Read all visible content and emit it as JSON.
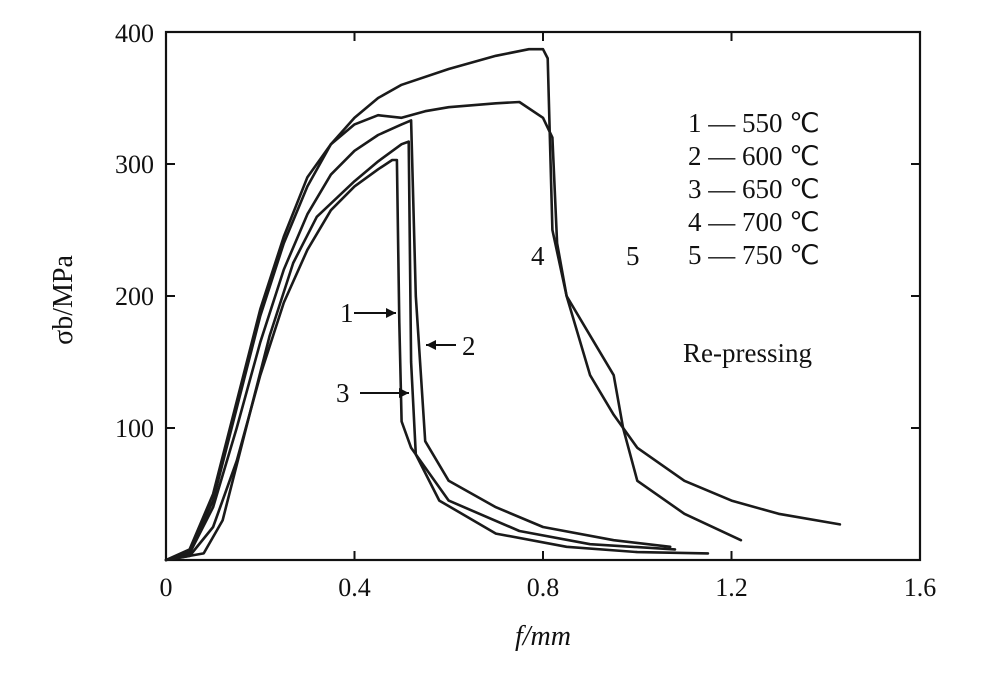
{
  "chart_data": {
    "type": "line",
    "xlabel": "f/mm",
    "ylabel": "σb/MPa",
    "xlim": [
      0,
      1.6
    ],
    "ylim": [
      0,
      400
    ],
    "xticks": [
      "0",
      "0.4",
      "0.8",
      "1.2",
      "1.6"
    ],
    "yticks": [
      "100",
      "200",
      "300",
      "400"
    ],
    "grid": false,
    "legend_position": "top-right",
    "legend": [
      "1 — 550 ℃",
      "2 — 600 ℃",
      "3 — 650 ℃",
      "4 — 700 ℃",
      "5 — 750 ℃"
    ],
    "annotation": "Re-pressing",
    "series": [
      {
        "name": "1",
        "label": "1",
        "points": [
          [
            0.0,
            0
          ],
          [
            0.05,
            3
          ],
          [
            0.1,
            25
          ],
          [
            0.15,
            75
          ],
          [
            0.2,
            140
          ],
          [
            0.25,
            195
          ],
          [
            0.3,
            235
          ],
          [
            0.35,
            265
          ],
          [
            0.4,
            283
          ],
          [
            0.45,
            296
          ],
          [
            0.48,
            303
          ],
          [
            0.49,
            303
          ],
          [
            0.495,
            180
          ],
          [
            0.5,
            105
          ],
          [
            0.52,
            85
          ],
          [
            0.6,
            45
          ],
          [
            0.75,
            22
          ],
          [
            0.9,
            12
          ],
          [
            1.08,
            8
          ]
        ]
      },
      {
        "name": "2",
        "label": "2",
        "points": [
          [
            0.0,
            0
          ],
          [
            0.05,
            5
          ],
          [
            0.1,
            40
          ],
          [
            0.15,
            100
          ],
          [
            0.2,
            165
          ],
          [
            0.25,
            220
          ],
          [
            0.3,
            262
          ],
          [
            0.35,
            292
          ],
          [
            0.4,
            310
          ],
          [
            0.45,
            322
          ],
          [
            0.5,
            330
          ],
          [
            0.52,
            333
          ],
          [
            0.53,
            200
          ],
          [
            0.55,
            90
          ],
          [
            0.6,
            60
          ],
          [
            0.7,
            40
          ],
          [
            0.8,
            25
          ],
          [
            0.95,
            15
          ],
          [
            1.07,
            10
          ]
        ]
      },
      {
        "name": "3",
        "label": "3",
        "points": [
          [
            0.0,
            0
          ],
          [
            0.08,
            5
          ],
          [
            0.12,
            30
          ],
          [
            0.17,
            100
          ],
          [
            0.22,
            170
          ],
          [
            0.27,
            225
          ],
          [
            0.32,
            260
          ],
          [
            0.4,
            287
          ],
          [
            0.45,
            302
          ],
          [
            0.5,
            315
          ],
          [
            0.515,
            317
          ],
          [
            0.52,
            150
          ],
          [
            0.53,
            80
          ],
          [
            0.58,
            45
          ],
          [
            0.7,
            20
          ],
          [
            0.85,
            10
          ],
          [
            1.0,
            6
          ],
          [
            1.15,
            5
          ]
        ]
      },
      {
        "name": "4",
        "label": "4",
        "points": [
          [
            0.0,
            0
          ],
          [
            0.05,
            8
          ],
          [
            0.1,
            50
          ],
          [
            0.15,
            120
          ],
          [
            0.2,
            190
          ],
          [
            0.25,
            245
          ],
          [
            0.3,
            290
          ],
          [
            0.35,
            315
          ],
          [
            0.4,
            330
          ],
          [
            0.45,
            337
          ],
          [
            0.5,
            335
          ],
          [
            0.55,
            340
          ],
          [
            0.6,
            343
          ],
          [
            0.7,
            346
          ],
          [
            0.75,
            347
          ],
          [
            0.8,
            335
          ],
          [
            0.82,
            320
          ],
          [
            0.83,
            240
          ],
          [
            0.85,
            200
          ],
          [
            0.9,
            140
          ],
          [
            0.95,
            110
          ],
          [
            1.0,
            85
          ],
          [
            1.1,
            60
          ],
          [
            1.2,
            45
          ],
          [
            1.3,
            35
          ],
          [
            1.43,
            27
          ]
        ]
      },
      {
        "name": "5",
        "label": "5",
        "points": [
          [
            0.0,
            0
          ],
          [
            0.05,
            6
          ],
          [
            0.1,
            45
          ],
          [
            0.15,
            115
          ],
          [
            0.2,
            185
          ],
          [
            0.25,
            240
          ],
          [
            0.3,
            283
          ],
          [
            0.35,
            315
          ],
          [
            0.4,
            335
          ],
          [
            0.45,
            350
          ],
          [
            0.5,
            360
          ],
          [
            0.6,
            372
          ],
          [
            0.7,
            382
          ],
          [
            0.77,
            387
          ],
          [
            0.8,
            387
          ],
          [
            0.81,
            380
          ],
          [
            0.82,
            250
          ],
          [
            0.85,
            200
          ],
          [
            0.9,
            170
          ],
          [
            0.95,
            140
          ],
          [
            0.97,
            100
          ],
          [
            1.0,
            60
          ],
          [
            1.1,
            35
          ],
          [
            1.22,
            15
          ]
        ]
      }
    ]
  }
}
